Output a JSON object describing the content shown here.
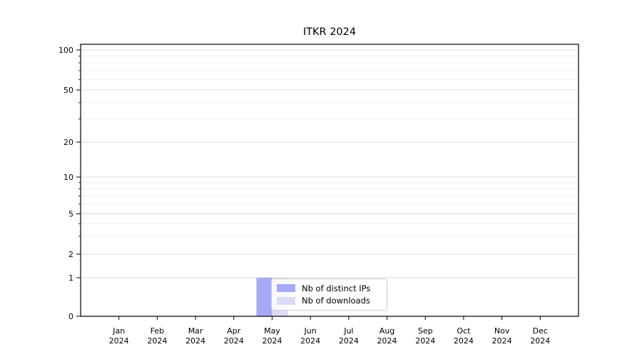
{
  "chart_data": {
    "type": "bar",
    "title": "ITKR 2024",
    "categories": [
      "Jan 2024",
      "Feb 2024",
      "Mar 2024",
      "Apr 2024",
      "May 2024",
      "Jun 2024",
      "Jul 2024",
      "Aug 2024",
      "Sep 2024",
      "Oct 2024",
      "Nov 2024",
      "Dec 2024"
    ],
    "series": [
      {
        "name": "Nb of distinct IPs",
        "color": "#a8a8f4",
        "values": [
          0,
          0,
          0,
          0,
          1,
          0,
          0,
          0,
          0,
          0,
          0,
          0
        ]
      },
      {
        "name": "Nb of downloads",
        "color": "#dcdcf6",
        "values": [
          0,
          0,
          0,
          0,
          1,
          0,
          0,
          0,
          0,
          0,
          0,
          0
        ]
      }
    ],
    "xlabel": "",
    "ylabel": "",
    "yscale": "symlog",
    "yticks": [
      0,
      1,
      2,
      5,
      10,
      20,
      50,
      100
    ],
    "yminor": [
      3,
      4,
      6,
      7,
      8,
      9,
      30,
      40,
      60,
      70,
      80,
      90
    ],
    "ylim": [
      0,
      110
    ],
    "grid": "horizontal-major-and-minor",
    "legend": {
      "position": "inside-bottom-center"
    }
  },
  "colors": {
    "spine": "#000000",
    "grid_major": "#dbdbdb",
    "grid_minor": "#efefef",
    "text": "#000000",
    "legend_border": "#cccccc"
  }
}
